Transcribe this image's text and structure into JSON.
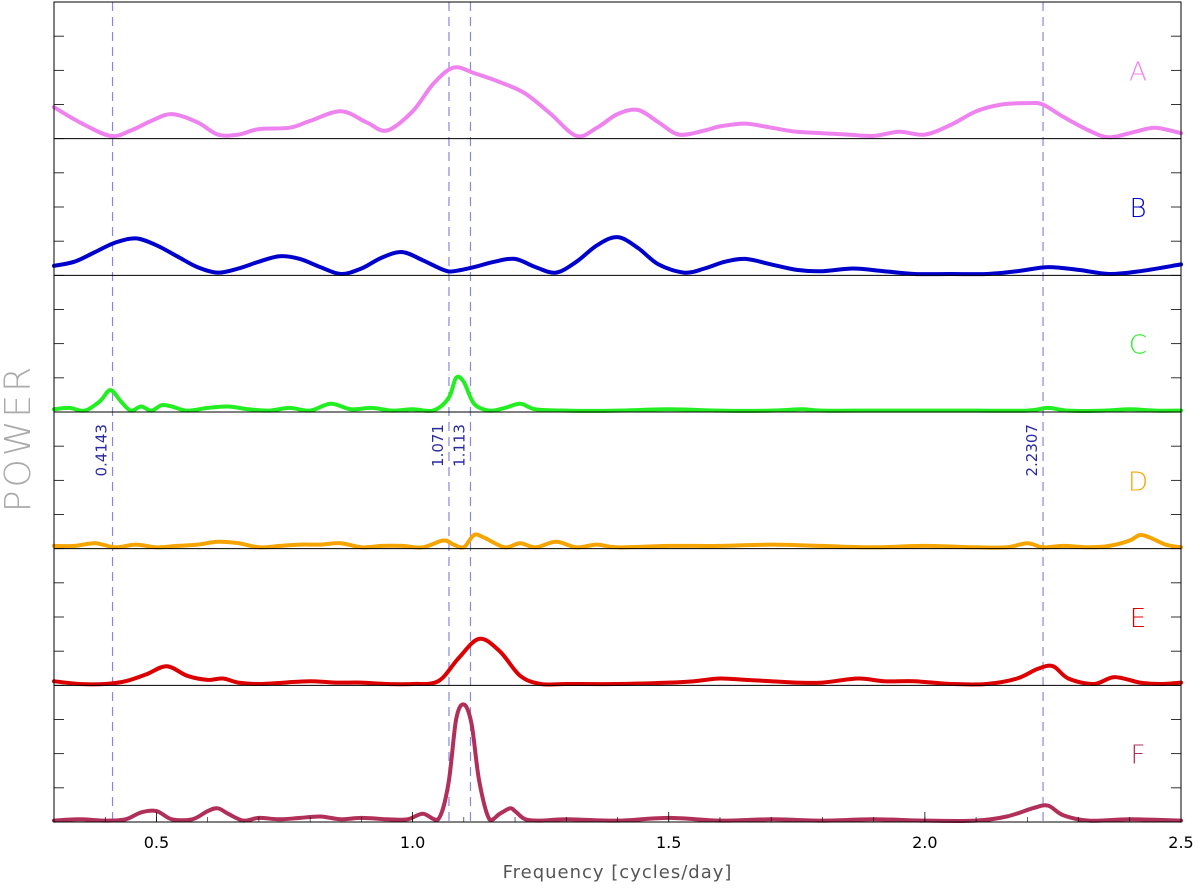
{
  "chart_data": {
    "type": "line",
    "xlabel": "Frequency [cycles/day]",
    "ylabel": "POWER",
    "xlim": [
      0.3,
      2.5
    ],
    "x_ticks": [
      0.5,
      1.0,
      1.5,
      2.0,
      2.5
    ],
    "x_tick_labels": [
      "0.5",
      "1.0",
      "1.5",
      "2.0",
      "2.5"
    ],
    "grid": false,
    "vlines": [
      {
        "x": 0.4143,
        "label": "0.4143"
      },
      {
        "x": 1.071,
        "label": "1.071"
      },
      {
        "x": 1.113,
        "label": "1.113"
      },
      {
        "x": 2.2307,
        "label": "2.2307"
      }
    ],
    "panels": [
      {
        "name": "A",
        "color": "#ee82ee",
        "ylim": [
          0,
          1.0
        ],
        "x": [
          0.3,
          0.35,
          0.41,
          0.45,
          0.49,
          0.53,
          0.58,
          0.62,
          0.66,
          0.7,
          0.76,
          0.8,
          0.86,
          0.91,
          0.95,
          1.0,
          1.04,
          1.08,
          1.12,
          1.18,
          1.22,
          1.27,
          1.32,
          1.36,
          1.4,
          1.44,
          1.48,
          1.52,
          1.57,
          1.6,
          1.65,
          1.7,
          1.75,
          1.8,
          1.85,
          1.9,
          1.95,
          2.0,
          2.05,
          2.1,
          2.15,
          2.2,
          2.23,
          2.27,
          2.32,
          2.36,
          2.41,
          2.45,
          2.5
        ],
        "y": [
          0.23,
          0.12,
          0.02,
          0.06,
          0.13,
          0.18,
          0.12,
          0.03,
          0.03,
          0.07,
          0.08,
          0.13,
          0.2,
          0.12,
          0.06,
          0.2,
          0.4,
          0.52,
          0.48,
          0.4,
          0.33,
          0.18,
          0.02,
          0.08,
          0.18,
          0.21,
          0.12,
          0.03,
          0.06,
          0.09,
          0.11,
          0.08,
          0.05,
          0.04,
          0.03,
          0.02,
          0.05,
          0.03,
          0.1,
          0.2,
          0.25,
          0.26,
          0.25,
          0.16,
          0.06,
          0.01,
          0.05,
          0.08,
          0.04
        ]
      },
      {
        "name": "B",
        "color": "#0000cc",
        "ylim": [
          0,
          1.0
        ],
        "x": [
          0.3,
          0.34,
          0.38,
          0.42,
          0.46,
          0.5,
          0.54,
          0.58,
          0.62,
          0.66,
          0.7,
          0.74,
          0.78,
          0.82,
          0.86,
          0.9,
          0.94,
          0.98,
          1.02,
          1.06,
          1.08,
          1.12,
          1.16,
          1.2,
          1.24,
          1.28,
          1.32,
          1.36,
          1.4,
          1.44,
          1.48,
          1.53,
          1.57,
          1.61,
          1.65,
          1.7,
          1.75,
          1.8,
          1.86,
          1.92,
          1.98,
          2.05,
          2.12,
          2.18,
          2.24,
          2.3,
          2.36,
          2.42,
          2.5
        ],
        "y": [
          0.07,
          0.1,
          0.17,
          0.24,
          0.27,
          0.22,
          0.14,
          0.06,
          0.02,
          0.05,
          0.1,
          0.14,
          0.12,
          0.06,
          0.01,
          0.05,
          0.13,
          0.17,
          0.11,
          0.04,
          0.03,
          0.06,
          0.1,
          0.12,
          0.06,
          0.02,
          0.1,
          0.22,
          0.28,
          0.2,
          0.08,
          0.02,
          0.05,
          0.1,
          0.12,
          0.08,
          0.04,
          0.03,
          0.05,
          0.03,
          0.01,
          0.01,
          0.01,
          0.03,
          0.06,
          0.04,
          0.01,
          0.03,
          0.08
        ]
      },
      {
        "name": "C",
        "color": "#22ee22",
        "ylim": [
          0,
          1.0
        ],
        "x": [
          0.3,
          0.33,
          0.36,
          0.39,
          0.41,
          0.43,
          0.45,
          0.47,
          0.49,
          0.51,
          0.53,
          0.56,
          0.6,
          0.64,
          0.68,
          0.72,
          0.76,
          0.8,
          0.84,
          0.88,
          0.92,
          0.96,
          1.0,
          1.04,
          1.07,
          1.085,
          1.1,
          1.12,
          1.15,
          1.18,
          1.21,
          1.24,
          1.3,
          1.4,
          1.5,
          1.6,
          1.7,
          1.76,
          1.8,
          1.9,
          2.0,
          2.1,
          2.2,
          2.24,
          2.28,
          2.35,
          2.4,
          2.45,
          2.5
        ],
        "y": [
          0.02,
          0.03,
          0.01,
          0.08,
          0.16,
          0.08,
          0.01,
          0.04,
          0.01,
          0.05,
          0.04,
          0.01,
          0.03,
          0.04,
          0.02,
          0.01,
          0.03,
          0.01,
          0.06,
          0.02,
          0.03,
          0.01,
          0.02,
          0.01,
          0.1,
          0.25,
          0.22,
          0.06,
          0.01,
          0.03,
          0.06,
          0.02,
          0.01,
          0.01,
          0.02,
          0.01,
          0.01,
          0.02,
          0.01,
          0.01,
          0.01,
          0.01,
          0.01,
          0.03,
          0.01,
          0.01,
          0.02,
          0.01,
          0.01
        ]
      },
      {
        "name": "D",
        "color": "#f5a400",
        "ylim": [
          0,
          1.0
        ],
        "x": [
          0.3,
          0.34,
          0.38,
          0.42,
          0.46,
          0.5,
          0.54,
          0.58,
          0.62,
          0.66,
          0.7,
          0.74,
          0.78,
          0.82,
          0.86,
          0.9,
          0.94,
          0.98,
          1.02,
          1.06,
          1.08,
          1.1,
          1.12,
          1.14,
          1.18,
          1.21,
          1.24,
          1.28,
          1.32,
          1.36,
          1.4,
          1.5,
          1.6,
          1.7,
          1.8,
          1.9,
          2.0,
          2.1,
          2.16,
          2.2,
          2.23,
          2.27,
          2.32,
          2.36,
          2.4,
          2.42,
          2.44,
          2.47,
          2.5
        ],
        "y": [
          0.02,
          0.02,
          0.04,
          0.01,
          0.03,
          0.01,
          0.02,
          0.03,
          0.05,
          0.04,
          0.01,
          0.02,
          0.03,
          0.03,
          0.04,
          0.01,
          0.02,
          0.02,
          0.01,
          0.06,
          0.03,
          0.01,
          0.1,
          0.08,
          0.01,
          0.04,
          0.01,
          0.05,
          0.01,
          0.03,
          0.01,
          0.02,
          0.02,
          0.03,
          0.02,
          0.01,
          0.02,
          0.01,
          0.01,
          0.04,
          0.01,
          0.02,
          0.01,
          0.02,
          0.06,
          0.1,
          0.08,
          0.03,
          0.01
        ]
      },
      {
        "name": "E",
        "color": "#dd0000",
        "ylim": [
          0,
          1.0
        ],
        "x": [
          0.3,
          0.35,
          0.4,
          0.44,
          0.48,
          0.52,
          0.56,
          0.6,
          0.63,
          0.66,
          0.7,
          0.75,
          0.8,
          0.85,
          0.9,
          0.95,
          1.0,
          1.05,
          1.09,
          1.13,
          1.17,
          1.21,
          1.25,
          1.3,
          1.4,
          1.5,
          1.55,
          1.6,
          1.65,
          1.7,
          1.75,
          1.8,
          1.87,
          1.92,
          1.98,
          2.05,
          2.12,
          2.18,
          2.22,
          2.25,
          2.28,
          2.33,
          2.37,
          2.42,
          2.46,
          2.5
        ],
        "y": [
          0.03,
          0.01,
          0.01,
          0.03,
          0.08,
          0.14,
          0.07,
          0.04,
          0.05,
          0.02,
          0.01,
          0.02,
          0.03,
          0.02,
          0.02,
          0.01,
          0.01,
          0.03,
          0.2,
          0.34,
          0.25,
          0.07,
          0.01,
          0.01,
          0.01,
          0.02,
          0.03,
          0.05,
          0.04,
          0.03,
          0.02,
          0.02,
          0.05,
          0.03,
          0.03,
          0.01,
          0.01,
          0.05,
          0.12,
          0.14,
          0.05,
          0.01,
          0.06,
          0.02,
          0.01,
          0.02
        ]
      },
      {
        "name": "F",
        "color": "#b0305a",
        "ylim": [
          0,
          1.0
        ],
        "x": [
          0.3,
          0.35,
          0.4,
          0.44,
          0.47,
          0.5,
          0.53,
          0.57,
          0.6,
          0.62,
          0.64,
          0.67,
          0.7,
          0.74,
          0.78,
          0.82,
          0.86,
          0.9,
          0.95,
          0.99,
          1.02,
          1.05,
          1.07,
          1.085,
          1.1,
          1.115,
          1.13,
          1.15,
          1.17,
          1.19,
          1.2,
          1.22,
          1.25,
          1.3,
          1.4,
          1.5,
          1.6,
          1.7,
          1.8,
          1.9,
          2.0,
          2.1,
          2.16,
          2.21,
          2.24,
          2.27,
          2.32,
          2.4,
          2.5
        ],
        "y": [
          0.01,
          0.02,
          0.01,
          0.02,
          0.07,
          0.08,
          0.02,
          0.02,
          0.08,
          0.1,
          0.06,
          0.01,
          0.03,
          0.02,
          0.03,
          0.04,
          0.02,
          0.03,
          0.02,
          0.02,
          0.06,
          0.02,
          0.28,
          0.75,
          0.86,
          0.72,
          0.3,
          0.02,
          0.06,
          0.1,
          0.08,
          0.02,
          0.01,
          0.02,
          0.01,
          0.03,
          0.01,
          0.02,
          0.01,
          0.02,
          0.01,
          0.01,
          0.04,
          0.1,
          0.12,
          0.05,
          0.01,
          0.02,
          0.01
        ]
      }
    ]
  }
}
